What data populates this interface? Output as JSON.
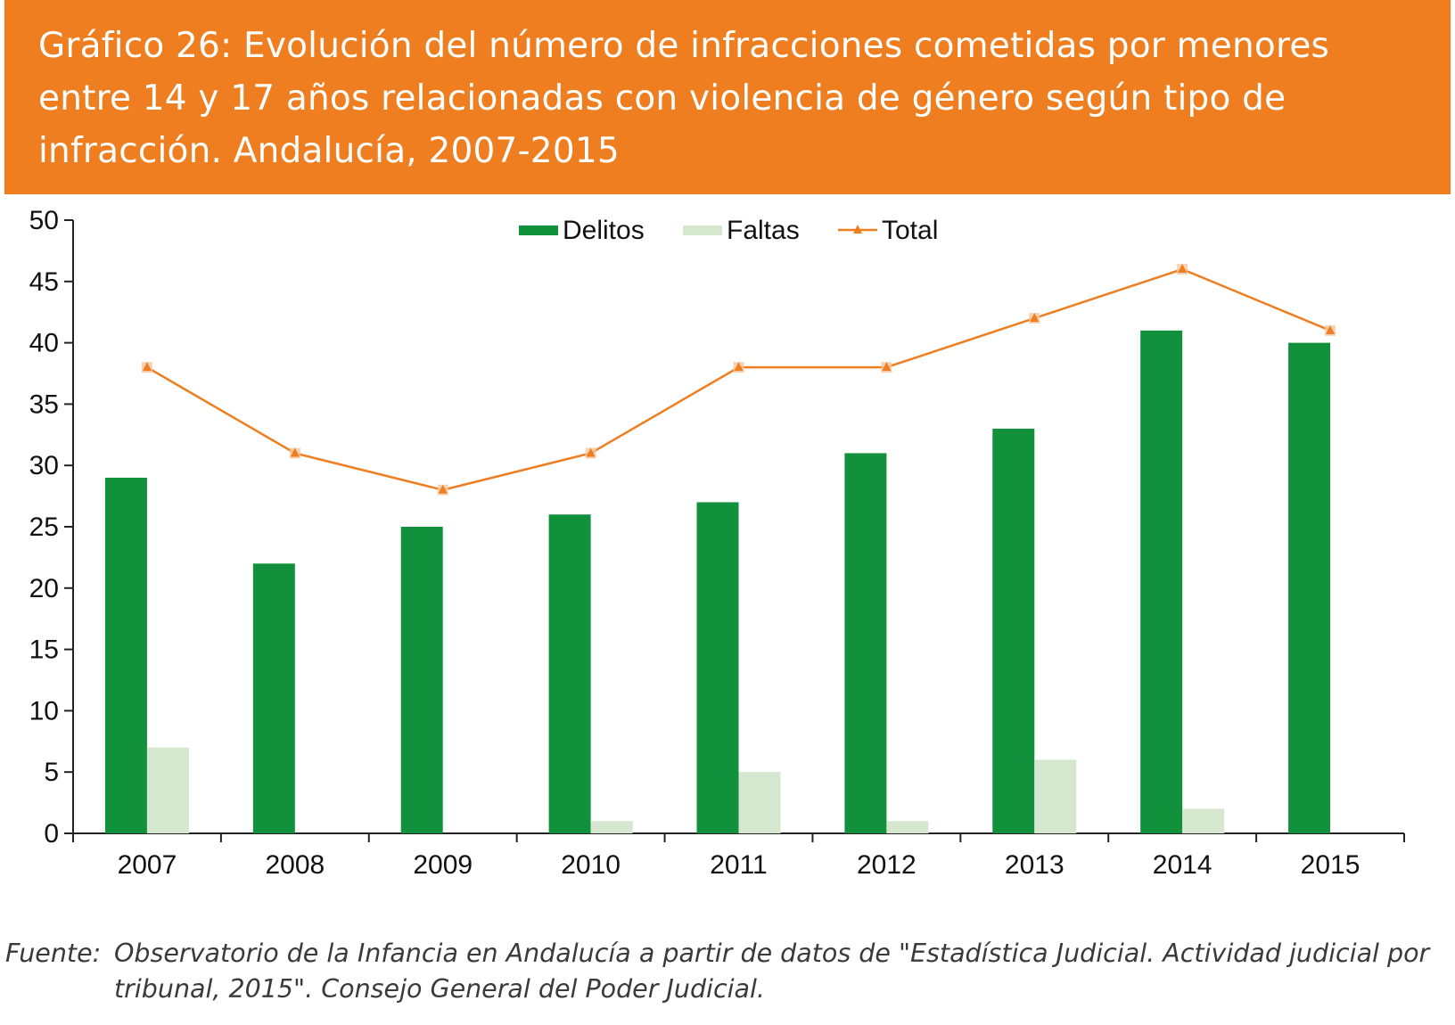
{
  "header": {
    "title": "Gráfico 26: Evolución del número de infracciones cometidas por menores entre 14 y 17 años relacionadas con violencia de género según tipo de infracción. Andalucía, 2007-2015"
  },
  "source": {
    "label": "Fuente:",
    "text": "Observatorio de la Infancia en Andalucía a partir de datos de \"Estadística Judicial. Actividad judicial por tribunal, 2015\". Consejo General del Poder Judicial."
  },
  "colors": {
    "banner": "#ee7e1f",
    "delitos": "#12913d",
    "faltas": "#d5e8cf",
    "total": "#ee7e1f"
  },
  "chart_data": {
    "type": "bar",
    "categories": [
      "2007",
      "2008",
      "2009",
      "2010",
      "2011",
      "2012",
      "2013",
      "2014",
      "2015"
    ],
    "series": [
      {
        "name": "Delitos",
        "type": "bar",
        "values": [
          29,
          22,
          25,
          26,
          27,
          31,
          33,
          41,
          40
        ]
      },
      {
        "name": "Faltas",
        "type": "bar",
        "values": [
          7,
          0,
          0,
          1,
          5,
          1,
          6,
          2,
          0
        ]
      },
      {
        "name": "Total",
        "type": "line",
        "values": [
          38,
          31,
          28,
          31,
          38,
          38,
          42,
          46,
          41
        ]
      }
    ],
    "ylim": [
      0,
      50
    ],
    "yticks": [
      0,
      5,
      10,
      15,
      20,
      25,
      30,
      35,
      40,
      45,
      50
    ],
    "xlabel": "",
    "ylabel": "",
    "legend": "top-center",
    "grid": false
  }
}
